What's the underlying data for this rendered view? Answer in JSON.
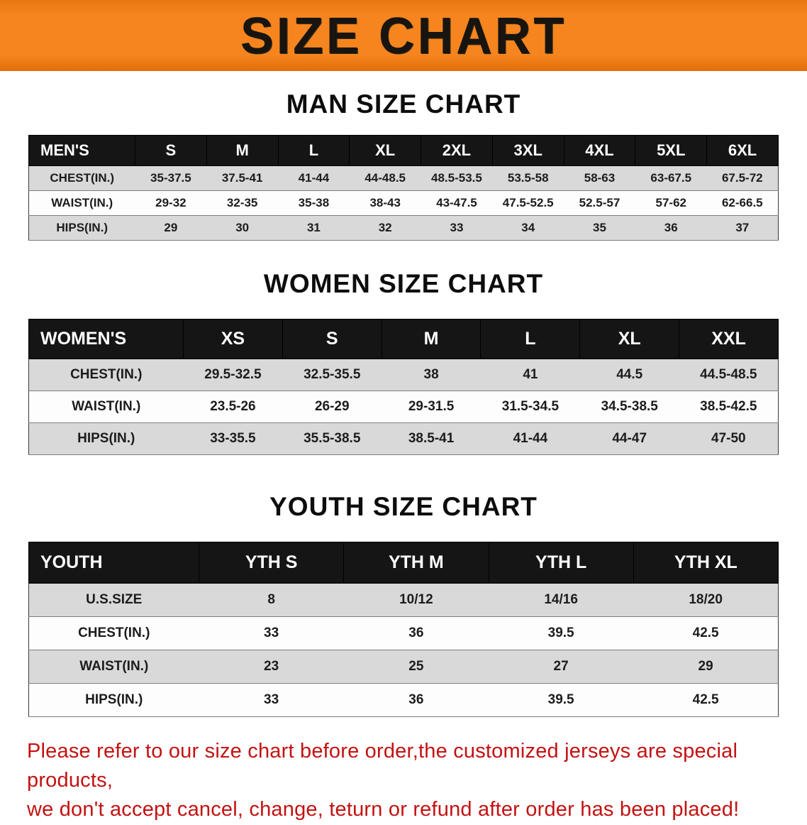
{
  "banner": {
    "title": "SIZE CHART"
  },
  "colors": {
    "orange": "#f6851f",
    "header_bg": "#151515",
    "row_gray": "#d9d9d9",
    "note_red": "#c41212"
  },
  "sections": [
    {
      "heading": "MAN SIZE CHART",
      "table": {
        "header": [
          "MEN'S",
          "S",
          "M",
          "L",
          "XL",
          "2XL",
          "3XL",
          "4XL",
          "5XL",
          "6XL"
        ],
        "rows": [
          [
            "CHEST(IN.)",
            "35-37.5",
            "37.5-41",
            "41-44",
            "44-48.5",
            "48.5-53.5",
            "53.5-58",
            "58-63",
            "63-67.5",
            "67.5-72"
          ],
          [
            "WAIST(IN.)",
            "29-32",
            "32-35",
            "35-38",
            "38-43",
            "43-47.5",
            "47.5-52.5",
            "52.5-57",
            "57-62",
            "62-66.5"
          ],
          [
            "HIPS(IN.)",
            "29",
            "30",
            "31",
            "32",
            "33",
            "34",
            "35",
            "36",
            "37"
          ]
        ]
      }
    },
    {
      "heading": "WOMEN SIZE CHART",
      "table": {
        "header": [
          "WOMEN'S",
          "XS",
          "S",
          "M",
          "L",
          "XL",
          "XXL"
        ],
        "rows": [
          [
            "CHEST(IN.)",
            "29.5-32.5",
            "32.5-35.5",
            "38",
            "41",
            "44.5",
            "44.5-48.5"
          ],
          [
            "WAIST(IN.)",
            "23.5-26",
            "26-29",
            "29-31.5",
            "31.5-34.5",
            "34.5-38.5",
            "38.5-42.5"
          ],
          [
            "HIPS(IN.)",
            "33-35.5",
            "35.5-38.5",
            "38.5-41",
            "41-44",
            "44-47",
            "47-50"
          ]
        ]
      }
    },
    {
      "heading": "YOUTH SIZE CHART",
      "table": {
        "header": [
          "YOUTH",
          "YTH S",
          "YTH M",
          "YTH L",
          "YTH XL"
        ],
        "rows": [
          [
            "U.S.SIZE",
            "8",
            "10/12",
            "14/16",
            "18/20"
          ],
          [
            "CHEST(IN.)",
            "33",
            "36",
            "39.5",
            "42.5"
          ],
          [
            "WAIST(IN.)",
            "23",
            "25",
            "27",
            "29"
          ],
          [
            "HIPS(IN.)",
            "33",
            "36",
            "39.5",
            "42.5"
          ]
        ]
      }
    }
  ],
  "footer": {
    "line1": "Please refer to our size chart before order,the customized jerseys are special products,",
    "line2": "we don't accept cancel, change, teturn or refund after order has been placed!"
  }
}
